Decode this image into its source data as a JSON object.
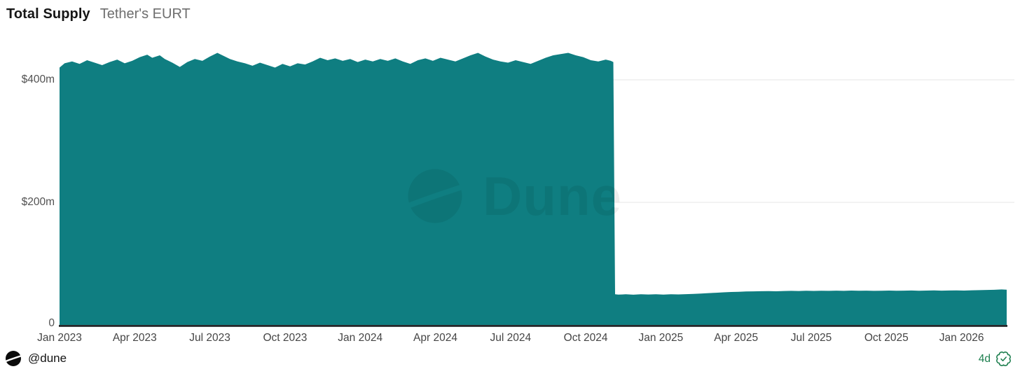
{
  "header": {
    "title": "Total Supply",
    "subtitle": "Tether's EURT"
  },
  "watermark": {
    "text": "Dune",
    "logo_icon": "dune-logo"
  },
  "footer": {
    "handle": "@dune",
    "age": "4d",
    "logo_icon": "dune-logo",
    "badge_icon": "verified-badge"
  },
  "colors": {
    "area": "#0f7e81",
    "baseline": "#16191c",
    "gridline": "#ededed",
    "axis_text": "#4d4d4d",
    "title_text": "#161616",
    "subtitle_text": "#6e6e6e",
    "age_green": "#1e7f4f",
    "watermark": "rgba(0,0,0,0.072)"
  },
  "chart_data": {
    "type": "area",
    "title": "Total Supply",
    "subtitle": "Tether's EURT",
    "xlabel": "",
    "ylabel": "",
    "legend": "none",
    "grid": "horizontal",
    "x_unit": "months since Jan 2023",
    "x_range_months": [
      0,
      37.8
    ],
    "ylim_musd": [
      0,
      480
    ],
    "yticks": [
      {
        "label": "$400m",
        "value": 400
      },
      {
        "label": "$200m",
        "value": 200
      },
      {
        "label": "0",
        "value": 0
      }
    ],
    "xticks": [
      {
        "label": "Jan 2023",
        "month": 0
      },
      {
        "label": "Apr 2023",
        "month": 3
      },
      {
        "label": "Jul 2023",
        "month": 6
      },
      {
        "label": "Oct 2023",
        "month": 9
      },
      {
        "label": "Jan 2024",
        "month": 12
      },
      {
        "label": "Apr 2024",
        "month": 15
      },
      {
        "label": "Jul 2024",
        "month": 18
      },
      {
        "label": "Oct 2024",
        "month": 21
      },
      {
        "label": "Jan 2025",
        "month": 24
      },
      {
        "label": "Apr 2025",
        "month": 27
      },
      {
        "label": "Jul 2025",
        "month": 30
      },
      {
        "label": "Oct 2025",
        "month": 33
      },
      {
        "label": "Jan 2026",
        "month": 36
      }
    ],
    "series": [
      {
        "name": "Total Supply (Tether's EURT)",
        "unit": "USD millions",
        "points": [
          [
            0,
            420
          ],
          [
            0.2,
            427
          ],
          [
            0.5,
            430
          ],
          [
            0.8,
            426
          ],
          [
            1.1,
            432
          ],
          [
            1.4,
            428
          ],
          [
            1.7,
            424
          ],
          [
            2.0,
            429
          ],
          [
            2.3,
            433
          ],
          [
            2.6,
            427
          ],
          [
            2.9,
            431
          ],
          [
            3.2,
            437
          ],
          [
            3.5,
            441
          ],
          [
            3.7,
            436
          ],
          [
            4.0,
            440
          ],
          [
            4.2,
            434
          ],
          [
            4.5,
            428
          ],
          [
            4.8,
            421
          ],
          [
            5.1,
            429
          ],
          [
            5.4,
            434
          ],
          [
            5.7,
            431
          ],
          [
            6.0,
            438
          ],
          [
            6.3,
            444
          ],
          [
            6.5,
            440
          ],
          [
            6.8,
            434
          ],
          [
            7.1,
            430
          ],
          [
            7.4,
            427
          ],
          [
            7.7,
            423
          ],
          [
            8.0,
            428
          ],
          [
            8.3,
            424
          ],
          [
            8.6,
            420
          ],
          [
            8.9,
            426
          ],
          [
            9.2,
            422
          ],
          [
            9.5,
            427
          ],
          [
            9.8,
            425
          ],
          [
            10.1,
            430
          ],
          [
            10.4,
            436
          ],
          [
            10.7,
            432
          ],
          [
            11.0,
            435
          ],
          [
            11.3,
            431
          ],
          [
            11.6,
            434
          ],
          [
            11.9,
            429
          ],
          [
            12.2,
            433
          ],
          [
            12.5,
            430
          ],
          [
            12.8,
            434
          ],
          [
            13.1,
            431
          ],
          [
            13.4,
            435
          ],
          [
            13.7,
            430
          ],
          [
            14.0,
            426
          ],
          [
            14.3,
            432
          ],
          [
            14.6,
            435
          ],
          [
            14.9,
            431
          ],
          [
            15.2,
            436
          ],
          [
            15.5,
            433
          ],
          [
            15.8,
            430
          ],
          [
            16.1,
            435
          ],
          [
            16.4,
            440
          ],
          [
            16.7,
            444
          ],
          [
            17.0,
            438
          ],
          [
            17.3,
            433
          ],
          [
            17.6,
            430
          ],
          [
            17.9,
            428
          ],
          [
            18.2,
            432
          ],
          [
            18.5,
            429
          ],
          [
            18.8,
            426
          ],
          [
            19.1,
            431
          ],
          [
            19.4,
            436
          ],
          [
            19.7,
            440
          ],
          [
            20.0,
            442
          ],
          [
            20.3,
            444
          ],
          [
            20.6,
            440
          ],
          [
            20.9,
            437
          ],
          [
            21.2,
            432
          ],
          [
            21.5,
            430
          ],
          [
            21.8,
            433
          ],
          [
            22.0,
            431
          ],
          [
            22.1,
            429
          ],
          [
            22.17,
            50
          ],
          [
            22.3,
            49.4
          ],
          [
            22.6,
            49.9
          ],
          [
            22.9,
            49.3
          ],
          [
            23.2,
            50.1
          ],
          [
            23.5,
            49.6
          ],
          [
            23.8,
            50.0
          ],
          [
            24.1,
            49.5
          ],
          [
            24.4,
            50.0
          ],
          [
            24.7,
            49.7
          ],
          [
            25.0,
            50.2
          ],
          [
            25.3,
            50.6
          ],
          [
            25.6,
            51.2
          ],
          [
            25.9,
            51.9
          ],
          [
            26.2,
            52.5
          ],
          [
            26.5,
            53.1
          ],
          [
            26.8,
            53.7
          ],
          [
            27.1,
            54.1
          ],
          [
            27.4,
            54.5
          ],
          [
            27.7,
            54.8
          ],
          [
            28.0,
            55.0
          ],
          [
            28.3,
            55.2
          ],
          [
            28.6,
            54.9
          ],
          [
            28.9,
            55.3
          ],
          [
            29.2,
            55.6
          ],
          [
            29.5,
            55.3
          ],
          [
            29.8,
            55.7
          ],
          [
            30.1,
            55.4
          ],
          [
            30.4,
            55.8
          ],
          [
            30.7,
            55.5
          ],
          [
            31.0,
            55.9
          ],
          [
            31.3,
            55.6
          ],
          [
            31.6,
            56.0
          ],
          [
            31.9,
            55.7
          ],
          [
            32.2,
            55.9
          ],
          [
            32.5,
            55.6
          ],
          [
            32.8,
            55.8
          ],
          [
            33.1,
            56.0
          ],
          [
            33.4,
            55.7
          ],
          [
            33.7,
            55.9
          ],
          [
            34.0,
            56.1
          ],
          [
            34.3,
            55.8
          ],
          [
            34.6,
            56.0
          ],
          [
            34.9,
            56.2
          ],
          [
            35.2,
            55.9
          ],
          [
            35.5,
            56.1
          ],
          [
            35.8,
            56.3
          ],
          [
            36.1,
            56.0
          ],
          [
            36.4,
            56.4
          ],
          [
            36.7,
            56.7
          ],
          [
            37.0,
            57.0
          ],
          [
            37.3,
            57.3
          ],
          [
            37.6,
            57.8
          ],
          [
            37.8,
            57.5
          ]
        ]
      }
    ]
  }
}
